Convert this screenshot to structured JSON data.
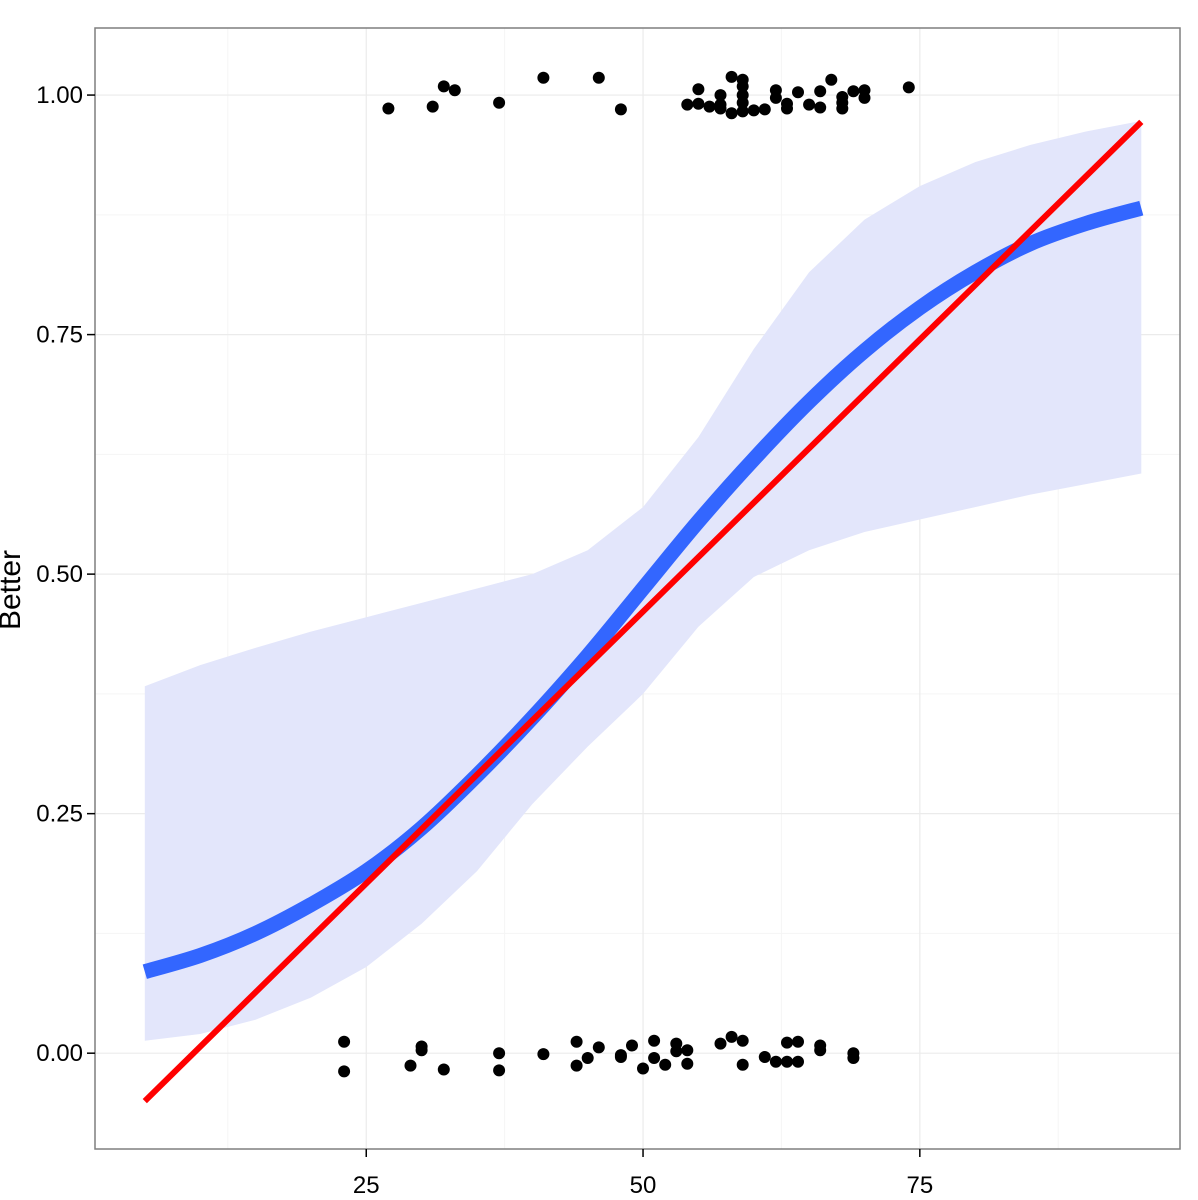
{
  "chart_data": {
    "type": "scatter",
    "title": "",
    "xlabel": "",
    "ylabel": "Better",
    "xlim": [
      0.5,
      98.5
    ],
    "ylim": [
      -0.1,
      1.07
    ],
    "x_ticks": [
      25,
      50,
      75
    ],
    "x_tick_labels": [
      "25",
      "50",
      "75"
    ],
    "y_ticks": [
      0,
      0.25,
      0.5,
      0.75,
      1
    ],
    "y_tick_labels": [
      "0.00",
      "0.25",
      "0.50",
      "0.75",
      "1.00"
    ],
    "grid": true,
    "legend": "none",
    "points": [
      [
        27,
        0.986
      ],
      [
        31,
        0.988
      ],
      [
        32,
        1.009
      ],
      [
        33,
        1.005
      ],
      [
        37,
        0.992
      ],
      [
        41,
        1.018
      ],
      [
        46,
        1.018
      ],
      [
        48,
        0.985
      ],
      [
        54,
        0.99
      ],
      [
        55,
        0.991
      ],
      [
        55,
        1.006
      ],
      [
        56,
        0.988
      ],
      [
        57,
        0.986
      ],
      [
        57,
        0.99
      ],
      [
        57,
        1.0
      ],
      [
        58,
        0.981
      ],
      [
        58,
        1.019
      ],
      [
        59,
        0.983
      ],
      [
        59,
        0.992
      ],
      [
        59,
        1.0
      ],
      [
        59,
        1.009
      ],
      [
        59,
        1.016
      ],
      [
        60,
        0.984
      ],
      [
        61,
        0.985
      ],
      [
        62,
        0.997
      ],
      [
        62,
        1.005
      ],
      [
        63,
        0.986
      ],
      [
        63,
        0.991
      ],
      [
        64,
        1.003
      ],
      [
        65,
        0.99
      ],
      [
        66,
        0.987
      ],
      [
        66,
        1.004
      ],
      [
        67,
        1.016
      ],
      [
        68,
        0.986
      ],
      [
        68,
        0.992
      ],
      [
        68,
        0.998
      ],
      [
        69,
        1.004
      ],
      [
        70,
        0.997
      ],
      [
        70,
        1.005
      ],
      [
        74,
        1.008
      ],
      [
        23,
        0.012
      ],
      [
        23,
        -0.019
      ],
      [
        29,
        -0.013
      ],
      [
        30,
        0.007
      ],
      [
        30,
        0.003
      ],
      [
        32,
        -0.017
      ],
      [
        37,
        0.0
      ],
      [
        37,
        -0.018
      ],
      [
        41,
        -0.001
      ],
      [
        44,
        0.012
      ],
      [
        44,
        -0.013
      ],
      [
        45,
        -0.005
      ],
      [
        46,
        0.006
      ],
      [
        48,
        -0.004
      ],
      [
        48,
        -0.002
      ],
      [
        49,
        0.008
      ],
      [
        50,
        -0.016
      ],
      [
        51,
        0.013
      ],
      [
        51,
        -0.005
      ],
      [
        52,
        -0.012
      ],
      [
        53,
        0.002
      ],
      [
        53,
        0.01
      ],
      [
        54,
        0.003
      ],
      [
        54,
        -0.011
      ],
      [
        57,
        0.01
      ],
      [
        58,
        0.017
      ],
      [
        59,
        0.013
      ],
      [
        59,
        -0.012
      ],
      [
        61,
        -0.004
      ],
      [
        62,
        -0.009
      ],
      [
        63,
        0.011
      ],
      [
        63,
        -0.009
      ],
      [
        64,
        0.012
      ],
      [
        64,
        -0.009
      ],
      [
        66,
        0.003
      ],
      [
        66,
        0.008
      ],
      [
        69,
        -0.005
      ],
      [
        69,
        0.0
      ]
    ],
    "linear_fit": {
      "x": [
        5,
        95
      ],
      "y": [
        -0.05,
        0.972
      ],
      "color": "#ff0000"
    },
    "logistic_fit": {
      "x": [
        5,
        10,
        15,
        20,
        25,
        30,
        35,
        40,
        45,
        50,
        55,
        60,
        65,
        70,
        75,
        80,
        85,
        90,
        95
      ],
      "y": [
        0.085,
        0.102,
        0.125,
        0.155,
        0.19,
        0.235,
        0.29,
        0.35,
        0.415,
        0.485,
        0.555,
        0.62,
        0.68,
        0.733,
        0.778,
        0.815,
        0.845,
        0.866,
        0.882
      ],
      "color": "#3366ff"
    },
    "confidence_band": {
      "x": [
        5,
        10,
        15,
        20,
        25,
        30,
        35,
        40,
        45,
        50,
        55,
        60,
        65,
        70,
        75,
        80,
        85,
        90,
        95
      ],
      "lower": [
        0.013,
        0.02,
        0.035,
        0.058,
        0.09,
        0.135,
        0.19,
        0.26,
        0.32,
        0.375,
        0.445,
        0.497,
        0.525,
        0.544,
        0.557,
        0.57,
        0.583,
        0.594,
        0.605
      ],
      "upper": [
        0.383,
        0.405,
        0.423,
        0.44,
        0.455,
        0.47,
        0.485,
        0.5,
        0.525,
        0.57,
        0.643,
        0.735,
        0.815,
        0.87,
        0.905,
        0.93,
        0.948,
        0.962,
        0.973
      ],
      "color": "#e3e6fb"
    },
    "point_color": "#000000",
    "panel_border_color": "#7f7f7f",
    "grid_color": "#ebebeb"
  }
}
